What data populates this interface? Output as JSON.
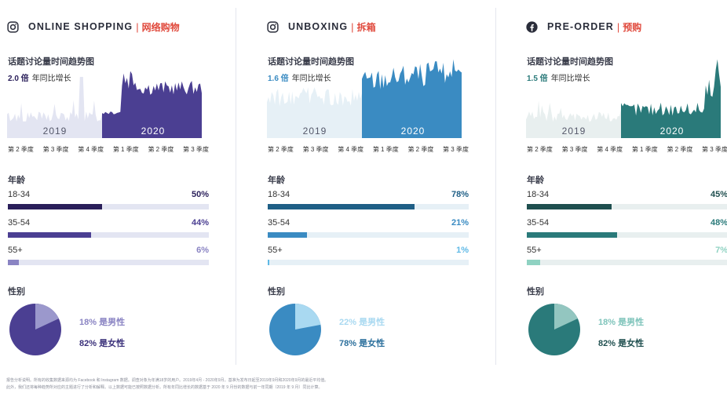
{
  "panels": [
    {
      "title_en": "ONLINE SHOPPING",
      "title_cn": "网络购物",
      "platform_icon": "instagram-icon",
      "trend_title": "话题讨论量时间趋势图",
      "growth_value": "2.0 倍",
      "growth_label": "年同比增长",
      "year_left": "2019",
      "year_right": "2020",
      "quarters": [
        "第 2 季度",
        "第 3 季度",
        "第 4 季度",
        "第 1 季度",
        "第 2 季度",
        "第 3 季度"
      ],
      "age_title": "年龄",
      "ages": [
        {
          "label": "18-34",
          "pct_text": "50%",
          "value": 0.5
        },
        {
          "label": "35-54",
          "pct_text": "44%",
          "value": 0.44
        },
        {
          "label": "55+",
          "pct_text": "6%",
          "value": 0.06
        }
      ],
      "gender_title": "性别",
      "male_text": "18% 是男性",
      "female_text": "82% 是女性",
      "male_share": 0.18,
      "colors": {
        "accent": "#4b3f92",
        "accent_dark": "#2a1f5a",
        "light": "#e3e5f2",
        "fills": [
          "#2a1f5a",
          "#4b3f92",
          "#8a84c3"
        ],
        "pcts": [
          "#2a1f5a",
          "#4b3f92",
          "#8a84c3"
        ],
        "male": "#9b98cc",
        "female": "#4b3f92",
        "male_text": "#8a84c3",
        "female_text": "#3a307a",
        "growth": "#2a1f5a"
      }
    },
    {
      "title_en": "UNBOXING",
      "title_cn": "拆箱",
      "platform_icon": "instagram-icon",
      "trend_title": "话题讨论量时间趋势图",
      "growth_value": "1.6 倍",
      "growth_label": "年同比增长",
      "year_left": "2019",
      "year_right": "2020",
      "quarters": [
        "第 2 季度",
        "第 3 季度",
        "第 4 季度",
        "第 1 季度",
        "第 2 季度",
        "第 3 季度"
      ],
      "age_title": "年龄",
      "ages": [
        {
          "label": "18-34",
          "pct_text": "78%",
          "value": 0.78
        },
        {
          "label": "35-54",
          "pct_text": "21%",
          "value": 0.21
        },
        {
          "label": "55+",
          "pct_text": "1%",
          "value": 0.01
        }
      ],
      "gender_title": "性别",
      "male_text": "22% 是男性",
      "female_text": "78% 是女性",
      "male_share": 0.22,
      "colors": {
        "accent": "#3a8bc2",
        "accent_dark": "#1f5f86",
        "light": "#e6f0f6",
        "fills": [
          "#1f5f86",
          "#3a8bc2",
          "#5fb9e6"
        ],
        "pcts": [
          "#1f5f86",
          "#3a8bc2",
          "#5fb9e6"
        ],
        "male": "#a9d9f1",
        "female": "#3a8bc2",
        "male_text": "#a9d9f1",
        "female_text": "#2b6f9c",
        "growth": "#3a8bc2"
      }
    },
    {
      "title_en": "PRE-ORDER",
      "title_cn": "预购",
      "platform_icon": "facebook-icon",
      "trend_title": "话题讨论量时间趋势图",
      "growth_value": "1.5 倍",
      "growth_label": "年同比增长",
      "year_left": "2019",
      "year_right": "2020",
      "quarters": [
        "第 2 季度",
        "第 3 季度",
        "第 4 季度",
        "第 1 季度",
        "第 2 季度",
        "第 3 季度"
      ],
      "age_title": "年龄",
      "ages": [
        {
          "label": "18-34",
          "pct_text": "45%",
          "value": 0.45
        },
        {
          "label": "35-54",
          "pct_text": "48%",
          "value": 0.48
        },
        {
          "label": "55+",
          "pct_text": "7%",
          "value": 0.07
        }
      ],
      "gender_title": "性别",
      "male_text": "18% 是男性",
      "female_text": "82% 是女性",
      "male_share": 0.18,
      "colors": {
        "accent": "#2a7a7a",
        "accent_dark": "#1f4f4f",
        "light": "#e8efef",
        "fills": [
          "#1f4f4f",
          "#2a7a7a",
          "#8fd2c2"
        ],
        "pcts": [
          "#1f4f4f",
          "#2a7a7a",
          "#8fd2c2"
        ],
        "male": "#93c6c0",
        "female": "#2a7a7a",
        "male_text": "#7fc4bb",
        "female_text": "#1f4f4f",
        "growth": "#2a7a7a"
      }
    }
  ],
  "footnote_line1": "报告分析说明。所有的收集数据来源均为 Facebook 和 Instagram 数据。调查对象为年满18岁的用户。2019年4月 - 2020年9月。基准为发布日起至2019年9月和2020年9月的最近平均值。",
  "footnote_line2": "此外，我们还将每种趋势所对应的主题进行了分析和解释。以上数据可能已按照数据分析。所有年同比增长的数据基于 2020 年 9 月份的数据与前一年同期（2019 年 9 月）同比计算。"
}
